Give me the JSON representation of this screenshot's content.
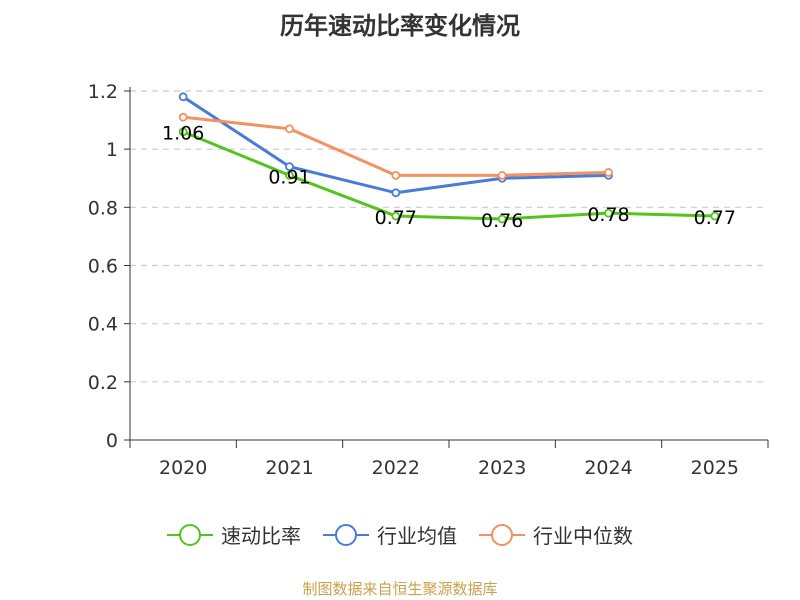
{
  "chart_data": {
    "type": "line",
    "title": "历年速动比率变化情况",
    "categories": [
      "2020",
      "2021",
      "2022",
      "2023",
      "2024",
      "2025"
    ],
    "ylim": [
      0,
      1.2
    ],
    "yticks": [
      "0",
      "0.2",
      "0.4",
      "0.6",
      "0.8",
      "1",
      "1.2"
    ],
    "grid": true,
    "legend_position": "bottom",
    "series": [
      {
        "name": "速动比率",
        "color": "#52c41a",
        "values": [
          1.06,
          0.91,
          0.77,
          0.76,
          0.78,
          0.77
        ],
        "labels": [
          "1.06",
          "0.91",
          "0.77",
          "0.76",
          "0.78",
          "0.77"
        ],
        "show_labels": true
      },
      {
        "name": "行业均值",
        "color": "#4a7bd6",
        "values": [
          1.18,
          0.94,
          0.85,
          0.9,
          0.91,
          null
        ],
        "show_labels": false
      },
      {
        "name": "行业中位数",
        "color": "#f39160",
        "values": [
          1.11,
          1.07,
          0.91,
          0.91,
          0.92,
          null
        ],
        "show_labels": false
      }
    ]
  },
  "source": "制图数据来自恒生聚源数据库"
}
